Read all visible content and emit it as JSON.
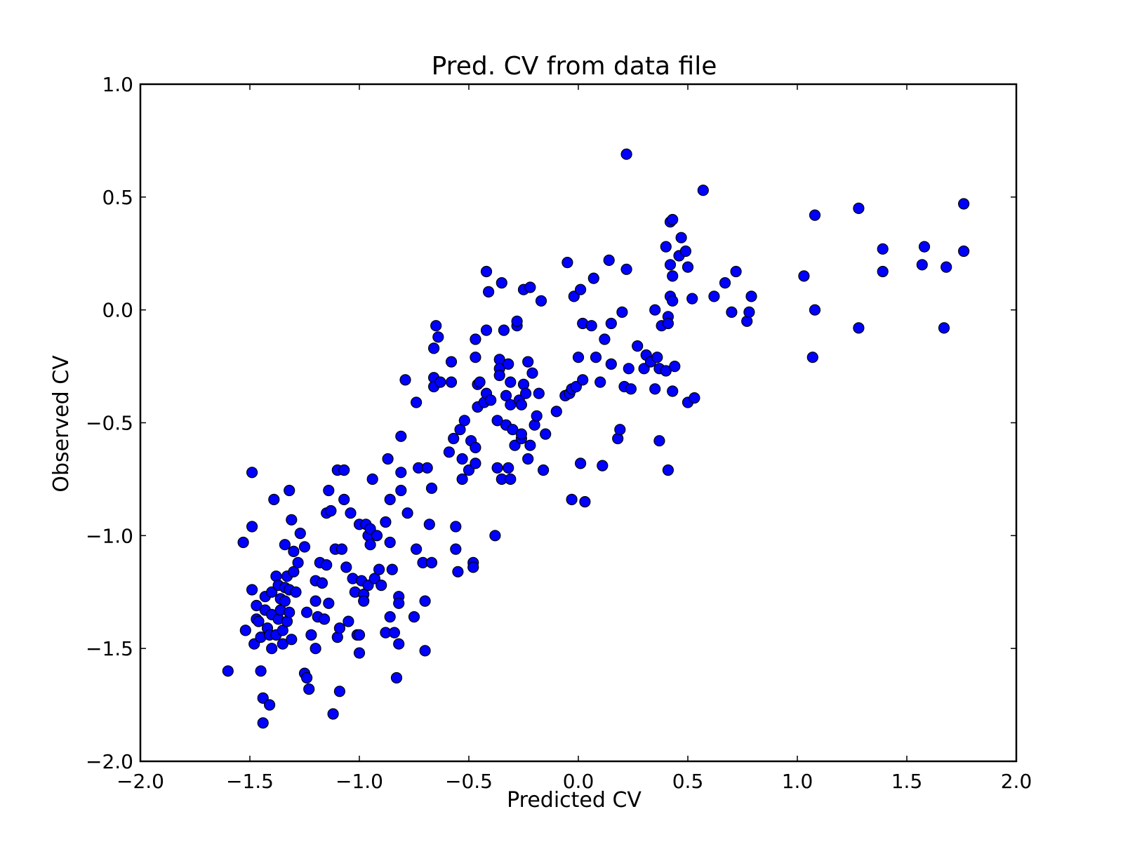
{
  "chart_data": {
    "type": "scatter",
    "title": "Pred. CV from data file",
    "xlabel": "Predicted CV",
    "ylabel": "Observed CV",
    "xlim": [
      -2.0,
      2.0
    ],
    "ylim": [
      -2.0,
      1.0
    ],
    "x_ticks": [
      "−2.0",
      "−1.5",
      "−1.0",
      "−0.5",
      "0.0",
      "0.5",
      "1.0",
      "1.5",
      "2.0"
    ],
    "y_ticks": [
      "1.0",
      "0.5",
      "0.0",
      "−0.5",
      "−1.0",
      "−1.5",
      "−2.0"
    ],
    "grid": false,
    "marker_color": "#0000ff",
    "points": [
      [
        -1.6,
        -1.6
      ],
      [
        -1.53,
        -1.03
      ],
      [
        -1.52,
        -1.42
      ],
      [
        -1.49,
        -0.72
      ],
      [
        -1.49,
        -0.96
      ],
      [
        -1.49,
        -1.24
      ],
      [
        -1.48,
        -1.48
      ],
      [
        -1.47,
        -1.31
      ],
      [
        -1.47,
        -1.37
      ],
      [
        -1.46,
        -1.38
      ],
      [
        -1.45,
        -1.6
      ],
      [
        -1.45,
        -1.45
      ],
      [
        -1.44,
        -1.72
      ],
      [
        -1.44,
        -1.83
      ],
      [
        -1.43,
        -1.33
      ],
      [
        -1.43,
        -1.27
      ],
      [
        -1.42,
        -1.41
      ],
      [
        -1.41,
        -1.75
      ],
      [
        -1.41,
        -1.44
      ],
      [
        -1.4,
        -1.35
      ],
      [
        -1.4,
        -1.5
      ],
      [
        -1.4,
        -1.25
      ],
      [
        -1.39,
        -0.84
      ],
      [
        -1.38,
        -1.18
      ],
      [
        -1.38,
        -1.44
      ],
      [
        -1.37,
        -1.37
      ],
      [
        -1.37,
        -1.22
      ],
      [
        -1.36,
        -1.28
      ],
      [
        -1.36,
        -1.33
      ],
      [
        -1.35,
        -1.48
      ],
      [
        -1.35,
        -1.42
      ],
      [
        -1.34,
        -1.23
      ],
      [
        -1.34,
        -1.04
      ],
      [
        -1.34,
        -1.29
      ],
      [
        -1.33,
        -1.38
      ],
      [
        -1.33,
        -1.18
      ],
      [
        -1.32,
        -0.8
      ],
      [
        -1.32,
        -1.34
      ],
      [
        -1.32,
        -1.24
      ],
      [
        -1.31,
        -0.93
      ],
      [
        -1.31,
        -1.46
      ],
      [
        -1.3,
        -1.07
      ],
      [
        -1.3,
        -1.16
      ],
      [
        -1.29,
        -1.25
      ],
      [
        -1.28,
        -1.12
      ],
      [
        -1.27,
        -0.99
      ],
      [
        -1.25,
        -1.05
      ],
      [
        -1.25,
        -1.61
      ],
      [
        -1.24,
        -1.63
      ],
      [
        -1.24,
        -1.34
      ],
      [
        -1.23,
        -1.68
      ],
      [
        -1.22,
        -1.44
      ],
      [
        -1.2,
        -1.5
      ],
      [
        -1.2,
        -1.2
      ],
      [
        -1.2,
        -1.29
      ],
      [
        -1.19,
        -1.36
      ],
      [
        -1.18,
        -1.12
      ],
      [
        -1.17,
        -1.21
      ],
      [
        -1.16,
        -1.37
      ],
      [
        -1.15,
        -0.9
      ],
      [
        -1.15,
        -1.13
      ],
      [
        -1.14,
        -0.8
      ],
      [
        -1.14,
        -1.3
      ],
      [
        -1.13,
        -0.89
      ],
      [
        -1.12,
        -1.79
      ],
      [
        -1.11,
        -1.06
      ],
      [
        -1.1,
        -1.45
      ],
      [
        -1.1,
        -0.71
      ],
      [
        -1.09,
        -1.41
      ],
      [
        -1.09,
        -1.69
      ],
      [
        -1.08,
        -1.06
      ],
      [
        -1.07,
        -0.84
      ],
      [
        -1.07,
        -0.71
      ],
      [
        -1.06,
        -1.14
      ],
      [
        -1.05,
        -1.38
      ],
      [
        -1.04,
        -0.9
      ],
      [
        -1.03,
        -1.19
      ],
      [
        -1.02,
        -1.25
      ],
      [
        -1.01,
        -1.44
      ],
      [
        -1.0,
        -0.95
      ],
      [
        -1.0,
        -1.52
      ],
      [
        -1.0,
        -1.44
      ],
      [
        -0.99,
        -1.2
      ],
      [
        -0.98,
        -1.26
      ],
      [
        -0.98,
        -1.29
      ],
      [
        -0.97,
        -0.95
      ],
      [
        -0.96,
        -1.22
      ],
      [
        -0.96,
        -1.0
      ],
      [
        -0.95,
        -0.97
      ],
      [
        -0.95,
        -1.04
      ],
      [
        -0.94,
        -0.75
      ],
      [
        -0.93,
        -1.19
      ],
      [
        -0.92,
        -1.0
      ],
      [
        -0.91,
        -1.15
      ],
      [
        -0.9,
        -1.22
      ],
      [
        -0.88,
        -1.43
      ],
      [
        -0.88,
        -0.94
      ],
      [
        -0.87,
        -0.66
      ],
      [
        -0.86,
        -0.84
      ],
      [
        -0.86,
        -1.03
      ],
      [
        -0.86,
        -1.36
      ],
      [
        -0.85,
        -1.15
      ],
      [
        -0.84,
        -1.43
      ],
      [
        -0.83,
        -1.63
      ],
      [
        -0.82,
        -1.27
      ],
      [
        -0.82,
        -1.48
      ],
      [
        -0.82,
        -1.3
      ],
      [
        -0.81,
        -0.72
      ],
      [
        -0.81,
        -0.8
      ],
      [
        -0.81,
        -0.56
      ],
      [
        -0.79,
        -0.31
      ],
      [
        -0.78,
        -0.9
      ],
      [
        -0.75,
        -1.36
      ],
      [
        -0.74,
        -1.06
      ],
      [
        -0.74,
        -0.41
      ],
      [
        -0.73,
        -0.7
      ],
      [
        -0.71,
        -1.12
      ],
      [
        -0.7,
        -1.51
      ],
      [
        -0.7,
        -1.29
      ],
      [
        -0.69,
        -0.7
      ],
      [
        -0.68,
        -0.95
      ],
      [
        -0.67,
        -0.79
      ],
      [
        -0.67,
        -1.12
      ],
      [
        -0.66,
        -0.3
      ],
      [
        -0.66,
        -0.34
      ],
      [
        -0.66,
        -0.17
      ],
      [
        -0.65,
        -0.07
      ],
      [
        -0.64,
        -0.12
      ],
      [
        -0.63,
        -0.32
      ],
      [
        -0.59,
        -0.63
      ],
      [
        -0.58,
        -0.23
      ],
      [
        -0.58,
        -0.32
      ],
      [
        -0.57,
        -0.57
      ],
      [
        -0.56,
        -0.96
      ],
      [
        -0.56,
        -1.06
      ],
      [
        -0.55,
        -1.16
      ],
      [
        -0.54,
        -0.53
      ],
      [
        -0.53,
        -0.75
      ],
      [
        -0.53,
        -0.66
      ],
      [
        -0.52,
        -0.49
      ],
      [
        -0.5,
        -0.71
      ],
      [
        -0.49,
        -0.58
      ],
      [
        -0.48,
        -1.12
      ],
      [
        -0.48,
        -1.14
      ],
      [
        -0.47,
        -0.68
      ],
      [
        -0.47,
        -0.61
      ],
      [
        -0.47,
        -0.13
      ],
      [
        -0.47,
        -0.21
      ],
      [
        -0.46,
        -0.43
      ],
      [
        -0.46,
        -0.33
      ],
      [
        -0.45,
        -0.32
      ],
      [
        -0.43,
        -0.41
      ],
      [
        -0.42,
        -0.37
      ],
      [
        -0.42,
        -0.09
      ],
      [
        -0.42,
        0.17
      ],
      [
        -0.41,
        0.08
      ],
      [
        -0.4,
        -0.4
      ],
      [
        -0.38,
        -1.0
      ],
      [
        -0.37,
        -0.49
      ],
      [
        -0.37,
        -0.7
      ],
      [
        -0.36,
        -0.22
      ],
      [
        -0.36,
        -0.26
      ],
      [
        -0.36,
        -0.29
      ],
      [
        -0.35,
        -0.75
      ],
      [
        -0.35,
        0.12
      ],
      [
        -0.34,
        -0.09
      ],
      [
        -0.33,
        -0.38
      ],
      [
        -0.33,
        -0.51
      ],
      [
        -0.32,
        -0.24
      ],
      [
        -0.32,
        -0.7
      ],
      [
        -0.31,
        -0.42
      ],
      [
        -0.31,
        -0.32
      ],
      [
        -0.31,
        -0.75
      ],
      [
        -0.3,
        -0.53
      ],
      [
        -0.29,
        -0.6
      ],
      [
        -0.28,
        -0.07
      ],
      [
        -0.28,
        -0.05
      ],
      [
        -0.27,
        -0.4
      ],
      [
        -0.26,
        -0.57
      ],
      [
        -0.26,
        -0.42
      ],
      [
        -0.26,
        -0.55
      ],
      [
        -0.25,
        -0.33
      ],
      [
        -0.25,
        0.09
      ],
      [
        -0.24,
        -0.37
      ],
      [
        -0.23,
        -0.66
      ],
      [
        -0.23,
        -0.23
      ],
      [
        -0.22,
        0.1
      ],
      [
        -0.22,
        -0.6
      ],
      [
        -0.21,
        -0.28
      ],
      [
        -0.2,
        -0.51
      ],
      [
        -0.19,
        -0.47
      ],
      [
        -0.18,
        -0.37
      ],
      [
        -0.17,
        0.04
      ],
      [
        -0.16,
        -0.71
      ],
      [
        -0.15,
        -0.55
      ],
      [
        -0.1,
        -0.45
      ],
      [
        -0.06,
        -0.38
      ],
      [
        -0.05,
        0.21
      ],
      [
        -0.04,
        -0.37
      ],
      [
        -0.03,
        -0.84
      ],
      [
        -0.03,
        -0.35
      ],
      [
        -0.02,
        0.06
      ],
      [
        -0.01,
        -0.34
      ],
      [
        0.0,
        -0.21
      ],
      [
        0.01,
        -0.68
      ],
      [
        0.01,
        0.09
      ],
      [
        0.02,
        -0.31
      ],
      [
        0.02,
        -0.06
      ],
      [
        0.03,
        -0.85
      ],
      [
        0.06,
        -0.07
      ],
      [
        0.07,
        0.14
      ],
      [
        0.08,
        -0.21
      ],
      [
        0.1,
        -0.32
      ],
      [
        0.11,
        -0.69
      ],
      [
        0.12,
        -0.13
      ],
      [
        0.14,
        0.22
      ],
      [
        0.15,
        -0.24
      ],
      [
        0.15,
        -0.06
      ],
      [
        0.18,
        -0.57
      ],
      [
        0.19,
        -0.53
      ],
      [
        0.2,
        -0.01
      ],
      [
        0.21,
        -0.34
      ],
      [
        0.22,
        0.69
      ],
      [
        0.22,
        0.18
      ],
      [
        0.23,
        -0.26
      ],
      [
        0.24,
        -0.35
      ],
      [
        0.27,
        -0.16
      ],
      [
        0.3,
        -0.26
      ],
      [
        0.31,
        -0.2
      ],
      [
        0.33,
        -0.23
      ],
      [
        0.35,
        -0.35
      ],
      [
        0.35,
        0.0
      ],
      [
        0.36,
        -0.21
      ],
      [
        0.37,
        -0.26
      ],
      [
        0.37,
        -0.58
      ],
      [
        0.38,
        -0.07
      ],
      [
        0.4,
        -0.27
      ],
      [
        0.4,
        0.28
      ],
      [
        0.41,
        -0.71
      ],
      [
        0.41,
        -0.03
      ],
      [
        0.41,
        -0.06
      ],
      [
        0.42,
        0.39
      ],
      [
        0.42,
        0.06
      ],
      [
        0.42,
        0.2
      ],
      [
        0.43,
        -0.36
      ],
      [
        0.43,
        0.4
      ],
      [
        0.43,
        0.15
      ],
      [
        0.43,
        0.04
      ],
      [
        0.44,
        -0.25
      ],
      [
        0.46,
        0.24
      ],
      [
        0.47,
        0.32
      ],
      [
        0.49,
        0.26
      ],
      [
        0.5,
        0.19
      ],
      [
        0.5,
        -0.41
      ],
      [
        0.52,
        0.05
      ],
      [
        0.53,
        -0.39
      ],
      [
        0.57,
        0.53
      ],
      [
        0.62,
        0.06
      ],
      [
        0.67,
        0.12
      ],
      [
        0.7,
        -0.01
      ],
      [
        0.72,
        0.17
      ],
      [
        0.77,
        -0.05
      ],
      [
        0.78,
        -0.01
      ],
      [
        0.79,
        0.06
      ],
      [
        1.03,
        0.15
      ],
      [
        1.07,
        -0.21
      ],
      [
        1.08,
        0.0
      ],
      [
        1.08,
        0.42
      ],
      [
        1.28,
        0.45
      ],
      [
        1.28,
        -0.08
      ],
      [
        1.39,
        0.27
      ],
      [
        1.39,
        0.17
      ],
      [
        1.57,
        0.2
      ],
      [
        1.58,
        0.28
      ],
      [
        1.67,
        -0.08
      ],
      [
        1.68,
        0.19
      ],
      [
        1.76,
        0.47
      ],
      [
        1.76,
        0.26
      ]
    ]
  }
}
